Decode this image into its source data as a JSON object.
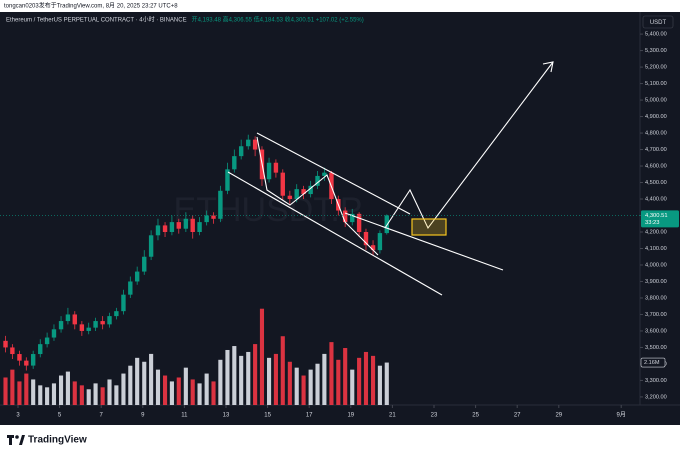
{
  "chart_data": {
    "type": "candlestick",
    "publisher": "tongcan0203发布于TradingView.com, 8月 20, 2025 23:27 UTC+8",
    "title": "Ethereum / TetherUS PERPETUAL CONTRACT · 4小时 · BINANCE",
    "ohlc_text": "开4,193.48 高4,306.55 低4,184.53 收4,300.51 +107.02 (+2.55%)",
    "watermark": "ETHUSDT.P",
    "currency": "USDT",
    "countdown": "33:23",
    "brand": "TradingView",
    "up_color": "#089981",
    "down_color": "#f23645",
    "volume_up_color": "#e0e3eb",
    "volume_down_color": "#f23645",
    "grid": false,
    "x": [
      2.4,
      2.73,
      3.07,
      3.4,
      3.73,
      4.07,
      4.4,
      4.73,
      5.07,
      5.4,
      5.73,
      6.07,
      6.4,
      6.73,
      7.07,
      7.4,
      7.73,
      8.07,
      8.4,
      8.73,
      9.07,
      9.4,
      9.73,
      10.07,
      10.4,
      10.73,
      11.07,
      11.4,
      11.73,
      12.07,
      12.4,
      12.73,
      13.07,
      13.4,
      13.73,
      14.07,
      14.4,
      14.73,
      15.07,
      15.4,
      15.73,
      16.07,
      16.4,
      16.73,
      17.07,
      17.4,
      17.73,
      18.07,
      18.4,
      18.73,
      19.07,
      19.4,
      19.73,
      20.07,
      20.4,
      20.73
    ],
    "open": [
      3540,
      3500,
      3460,
      3420,
      3390,
      3460,
      3520,
      3560,
      3610,
      3660,
      3700,
      3640,
      3600,
      3620,
      3660,
      3640,
      3690,
      3720,
      3820,
      3900,
      3960,
      4050,
      4180,
      4240,
      4200,
      4260,
      4220,
      4280,
      4200,
      4260,
      4300,
      4280,
      4450,
      4580,
      4660,
      4720,
      4760,
      4700,
      4520,
      4620,
      4560,
      4420,
      4400,
      4460,
      4430,
      4480,
      4540,
      4560,
      4400,
      4330,
      4260,
      4310,
      4200,
      4120,
      4090,
      4193.48
    ],
    "high": [
      3570,
      3520,
      3480,
      3440,
      3480,
      3550,
      3590,
      3640,
      3690,
      3740,
      3720,
      3660,
      3650,
      3680,
      3690,
      3710,
      3740,
      3850,
      3930,
      3990,
      4090,
      4210,
      4280,
      4260,
      4300,
      4280,
      4320,
      4300,
      4290,
      4330,
      4320,
      4480,
      4620,
      4700,
      4760,
      4790,
      4780,
      4720,
      4650,
      4640,
      4580,
      4450,
      4490,
      4480,
      4510,
      4570,
      4590,
      4570,
      4420,
      4350,
      4340,
      4320,
      4220,
      4150,
      4210,
      4306.55
    ],
    "low": [
      3470,
      3430,
      3390,
      3360,
      3370,
      3440,
      3500,
      3540,
      3590,
      3640,
      3610,
      3570,
      3580,
      3600,
      3610,
      3620,
      3670,
      3700,
      3800,
      3880,
      3940,
      4030,
      4150,
      4170,
      4180,
      4190,
      4200,
      4160,
      4180,
      4240,
      4250,
      4260,
      4430,
      4560,
      4640,
      4700,
      4660,
      4480,
      4500,
      4530,
      4390,
      4370,
      4380,
      4400,
      4410,
      4460,
      4510,
      4370,
      4300,
      4230,
      4240,
      4170,
      4090,
      4060,
      4070,
      4184.53
    ],
    "close": [
      3500,
      3460,
      3420,
      3390,
      3460,
      3520,
      3560,
      3610,
      3660,
      3700,
      3640,
      3600,
      3620,
      3660,
      3640,
      3690,
      3720,
      3820,
      3900,
      3960,
      4050,
      4180,
      4240,
      4200,
      4260,
      4220,
      4280,
      4200,
      4260,
      4300,
      4280,
      4450,
      4580,
      4660,
      4720,
      4760,
      4700,
      4520,
      4620,
      4560,
      4420,
      4400,
      4460,
      4430,
      4480,
      4540,
      4560,
      4400,
      4330,
      4260,
      4310,
      4200,
      4120,
      4090,
      4193.48,
      4300.51
    ],
    "volume": [
      1.4,
      1.8,
      1.2,
      1.6,
      1.3,
      1.0,
      0.9,
      1.1,
      1.5,
      1.7,
      1.2,
      1.0,
      0.8,
      1.1,
      0.9,
      1.3,
      1.0,
      1.6,
      2.0,
      2.4,
      2.2,
      2.6,
      1.8,
      1.5,
      1.2,
      1.4,
      1.9,
      1.3,
      1.1,
      1.6,
      1.2,
      2.3,
      2.8,
      3.0,
      2.5,
      2.7,
      3.1,
      4.9,
      2.4,
      2.6,
      3.5,
      2.2,
      1.9,
      1.5,
      1.8,
      2.1,
      2.6,
      3.2,
      2.3,
      2.9,
      1.8,
      2.4,
      2.7,
      2.5,
      2.0,
      2.16
    ],
    "last_price": {
      "value": 4300.51,
      "label": "4,300.51"
    },
    "last_volume": {
      "value": 2.16,
      "label": "2.16M"
    },
    "vlim": [
      0,
      20
    ],
    "xlim": [
      2.135,
      32.904
    ],
    "xticks": [
      3,
      5,
      7,
      9,
      11,
      13,
      15,
      17,
      19,
      21,
      23,
      25,
      27,
      29,
      {
        "value": 32,
        "label": "9月"
      }
    ],
    "ylim": [
      3151,
      5534
    ],
    "yticks": [
      {
        "value": 5400,
        "label": "5,400.00"
      },
      {
        "value": 5300,
        "label": "5,300.00"
      },
      {
        "value": 5200,
        "label": "5,200.00"
      },
      {
        "value": 5100,
        "label": "5,100.00"
      },
      {
        "value": 5000,
        "label": "5,000.00"
      },
      {
        "value": 4900,
        "label": "4,900.00"
      },
      {
        "value": 4800,
        "label": "4,800.00"
      },
      {
        "value": 4700,
        "label": "4,700.00"
      },
      {
        "value": 4600,
        "label": "4,600.00"
      },
      {
        "value": 4500,
        "label": "4,500.00"
      },
      {
        "value": 4400,
        "label": "4,400.00"
      },
      {
        "value": 4300,
        "label": "4,300.00"
      },
      {
        "value": 4200,
        "label": "4,200.00"
      },
      {
        "value": 4100,
        "label": "4,100.00"
      },
      {
        "value": 4000,
        "label": "4,000.00"
      },
      {
        "value": 3900,
        "label": "3,900.00"
      },
      {
        "value": 3800,
        "label": "3,800.00"
      },
      {
        "value": 3700,
        "label": "3,700.00"
      },
      {
        "value": 3600,
        "label": "3,600.00"
      },
      {
        "value": 3500,
        "label": "3,500.00"
      },
      {
        "value": 3400,
        "label": "3,400.00"
      },
      {
        "value": 3300,
        "label": "3,300.00"
      },
      {
        "value": 3200,
        "label": "3,200.00"
      }
    ]
  }
}
